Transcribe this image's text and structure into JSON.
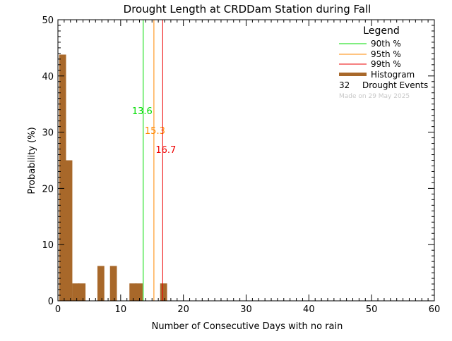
{
  "chart_data": {
    "type": "bar",
    "title": "Drought Length at CRDDam Station during Fall",
    "xlabel": "Number of Consecutive Days with no rain",
    "ylabel": "Probability (%)",
    "xlim": [
      0,
      60
    ],
    "ylim": [
      0,
      50
    ],
    "xticks": [
      "0",
      "10",
      "20",
      "30",
      "40",
      "50",
      "60"
    ],
    "yticks": [
      "0",
      "10",
      "20",
      "30",
      "40",
      "50"
    ],
    "grid": false,
    "bin_width": 1.1,
    "bins": [
      {
        "x": 0.2,
        "value": 43.8
      },
      {
        "x": 1.2,
        "value": 25.0
      },
      {
        "x": 2.3,
        "value": 3.1
      },
      {
        "x": 3.3,
        "value": 3.1
      },
      {
        "x": 6.3,
        "value": 6.2
      },
      {
        "x": 8.3,
        "value": 6.2
      },
      {
        "x": 11.4,
        "value": 3.1
      },
      {
        "x": 12.4,
        "value": 3.1
      },
      {
        "x": 16.3,
        "value": 3.1
      }
    ],
    "bar_color": "#a8682a",
    "percentiles": [
      {
        "name": "90th %",
        "value": 13.6,
        "label": "13.6",
        "color": "#00dd00"
      },
      {
        "name": "95th %",
        "value": 15.3,
        "label": "15.3",
        "color": "#ff8800"
      },
      {
        "name": "99th %",
        "value": 16.7,
        "label": "16.7",
        "color": "#ee0000"
      }
    ],
    "legend": {
      "title": "Legend",
      "placement": "top-right",
      "histogram_label": "Histogram",
      "events_count": "32",
      "events_label": "Drought Events",
      "made_on": "Made on 29 May 2025"
    }
  }
}
